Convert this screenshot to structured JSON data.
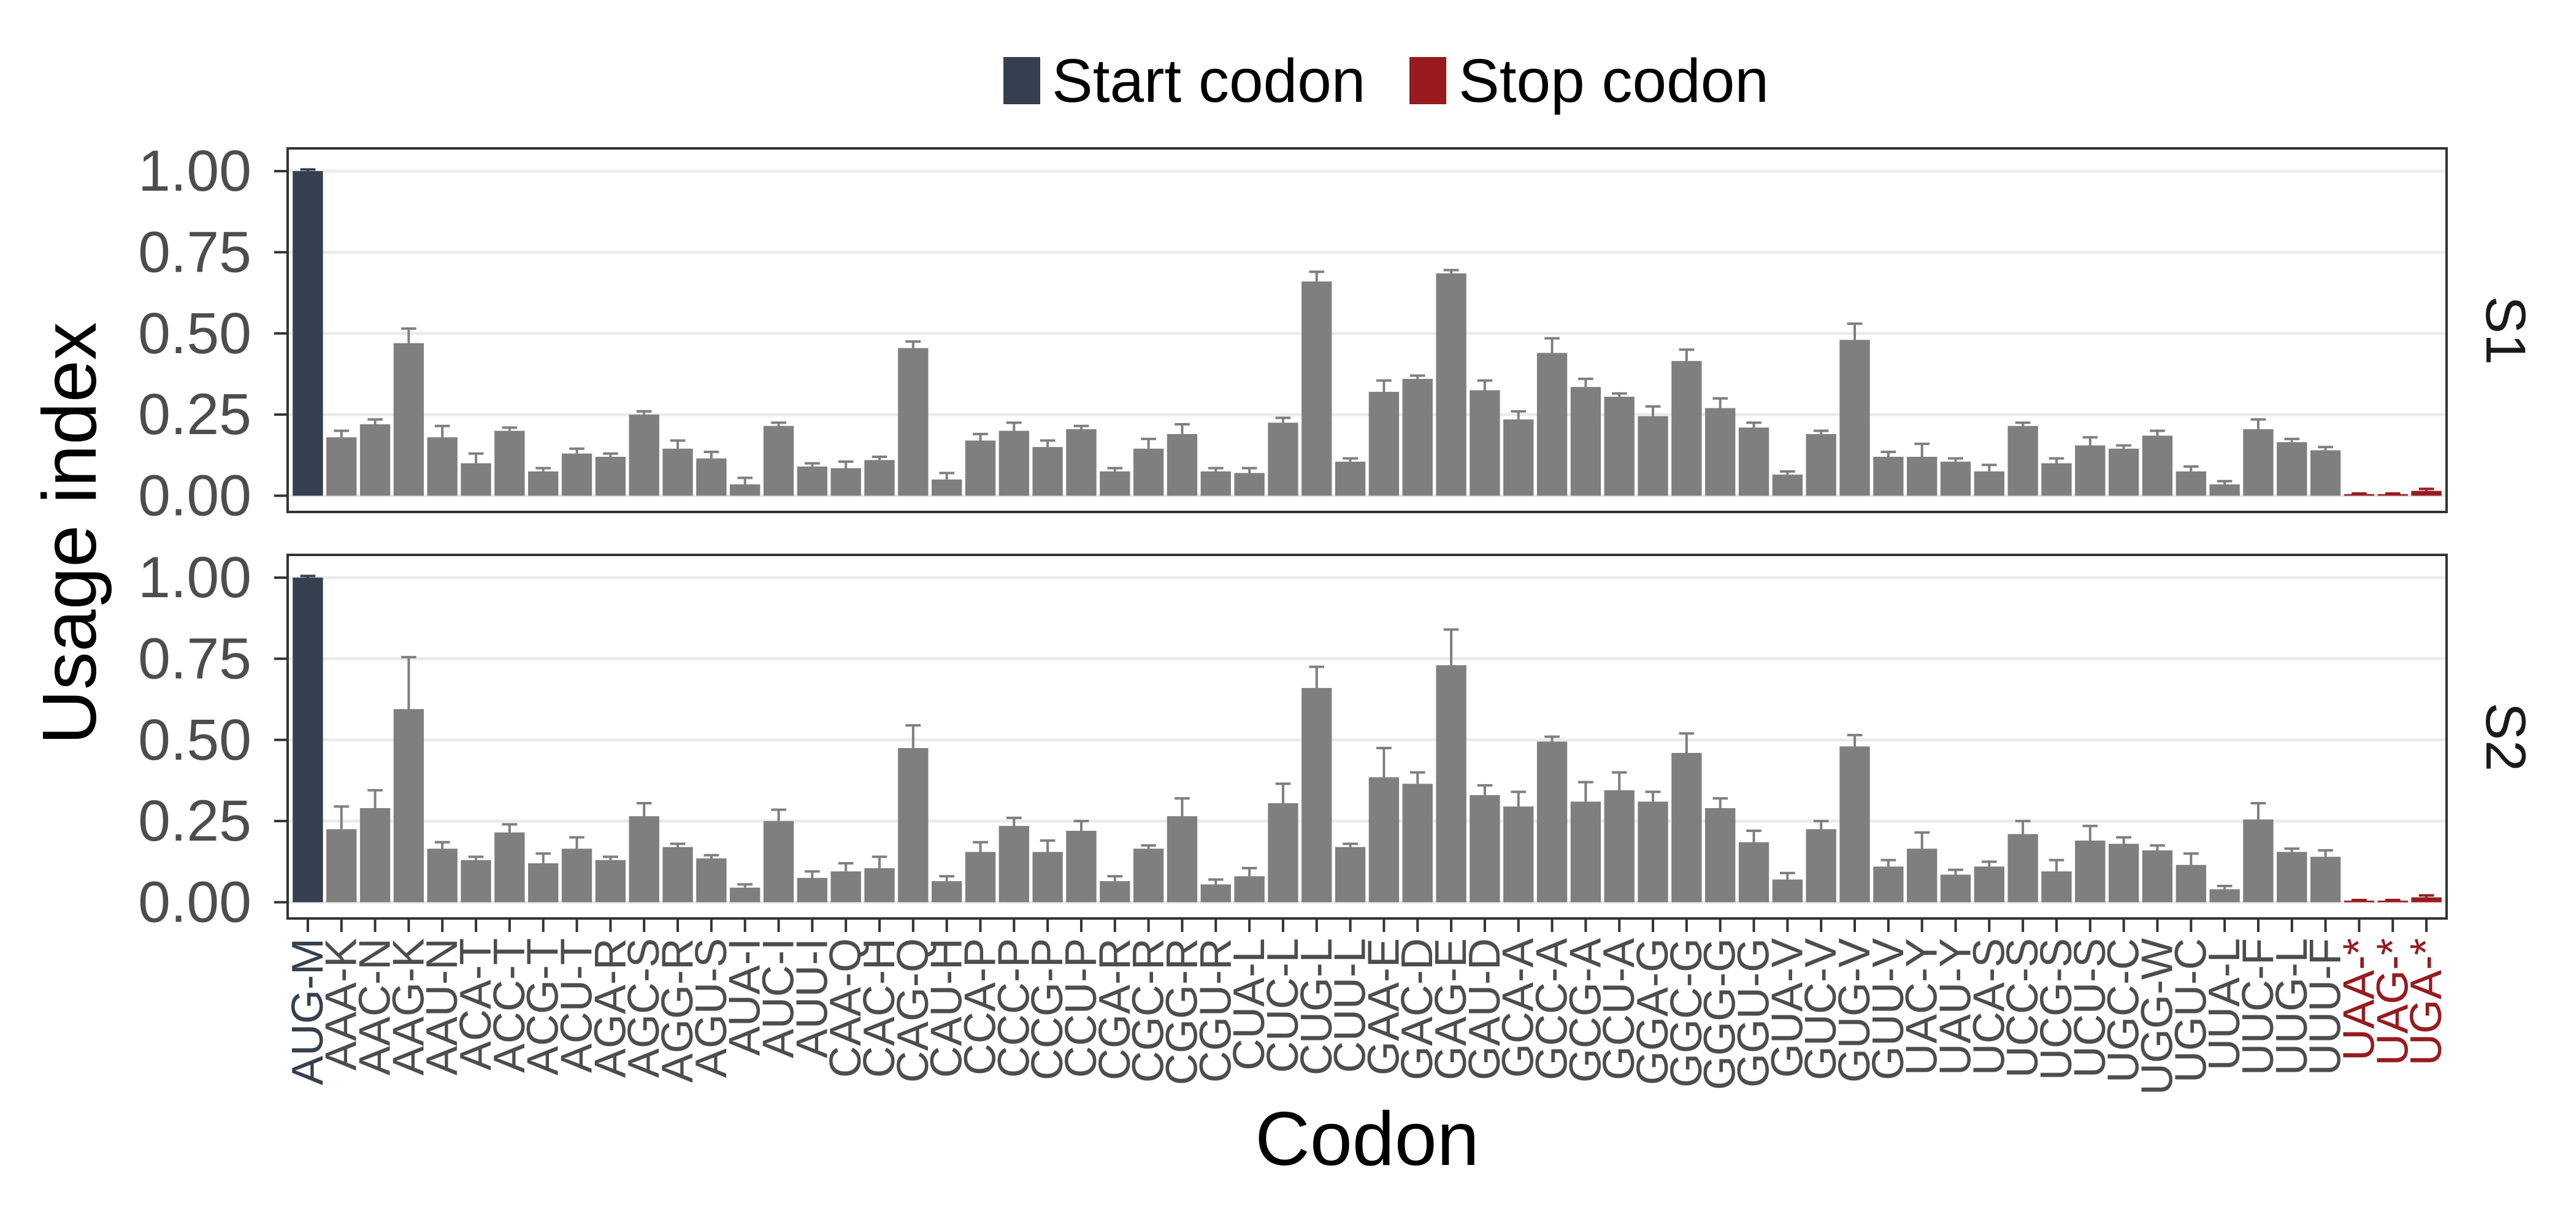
{
  "chart_data": {
    "type": "bar",
    "xlabel": "Codon",
    "ylabel": "Usage index",
    "legend_position": "top",
    "grid": {
      "major_y": true,
      "major_x": false
    },
    "legend": [
      {
        "label": "Start codon",
        "color": "#353F4F"
      },
      {
        "label": "Stop codon",
        "color": "#971B1F"
      }
    ],
    "colors": {
      "start": "#353F4F",
      "stop": "#971B1F",
      "bar": "#7F7F7F",
      "tick_label": "#4D4D4D",
      "axis": "#333333",
      "grid": "#EBEBEB",
      "title": "#000000",
      "strip": "#1A1A1A"
    },
    "start_index": [
      0
    ],
    "stop_index": [
      61,
      62,
      63
    ],
    "ylim": [
      -0.05,
      1.07
    ],
    "yticks": [
      0,
      0.25,
      0.5,
      0.75,
      1
    ],
    "ytick_labels": [
      "0.00",
      "0.25",
      "0.50",
      "0.75",
      "1.00"
    ],
    "categories": [
      "AUG-M",
      "AAA-K",
      "AAC-N",
      "AAG-K",
      "AAU-N",
      "ACA-T",
      "ACC-T",
      "ACG-T",
      "ACU-T",
      "AGA-R",
      "AGC-S",
      "AGG-R",
      "AGU-S",
      "AUA-I",
      "AUC-I",
      "AUU-I",
      "CAA-Q",
      "CAC-H",
      "CAG-Q",
      "CAU-H",
      "CCA-P",
      "CCC-P",
      "CCG-P",
      "CCU-P",
      "CGA-R",
      "CGC-R",
      "CGG-R",
      "CGU-R",
      "CUA-L",
      "CUC-L",
      "CUG-L",
      "CUU-L",
      "GAA-E",
      "GAC-D",
      "GAG-E",
      "GAU-D",
      "GCA-A",
      "GCC-A",
      "GCG-A",
      "GCU-A",
      "GGA-G",
      "GGC-G",
      "GGG-G",
      "GGU-G",
      "GUA-V",
      "GUC-V",
      "GUG-V",
      "GUU-V",
      "UAC-Y",
      "UAU-Y",
      "UCA-S",
      "UCC-S",
      "UCG-S",
      "UCU-S",
      "UGC-C",
      "UGG-W",
      "UGU-C",
      "UUA-L",
      "UUC-F",
      "UUG-L",
      "UUU-F",
      "UAA-*",
      "UAG-*",
      "UGA-*"
    ],
    "series": [
      {
        "name": "S1",
        "values": [
          1.0,
          0.18,
          0.22,
          0.47,
          0.18,
          0.1,
          0.2,
          0.075,
          0.13,
          0.12,
          0.25,
          0.145,
          0.115,
          0.035,
          0.215,
          0.09,
          0.085,
          0.11,
          0.455,
          0.05,
          0.17,
          0.2,
          0.15,
          0.205,
          0.075,
          0.145,
          0.19,
          0.075,
          0.07,
          0.225,
          0.66,
          0.105,
          0.32,
          0.36,
          0.685,
          0.325,
          0.235,
          0.44,
          0.335,
          0.305,
          0.245,
          0.415,
          0.27,
          0.21,
          0.065,
          0.19,
          0.48,
          0.12,
          0.12,
          0.105,
          0.075,
          0.215,
          0.1,
          0.155,
          0.145,
          0.185,
          0.075,
          0.035,
          0.205,
          0.165,
          0.14,
          0.005,
          0.005,
          0.015
        ],
        "errors": [
          0.005,
          0.02,
          0.015,
          0.045,
          0.035,
          0.03,
          0.01,
          0.01,
          0.015,
          0.01,
          0.01,
          0.025,
          0.02,
          0.02,
          0.01,
          0.01,
          0.02,
          0.01,
          0.02,
          0.02,
          0.02,
          0.025,
          0.02,
          0.01,
          0.01,
          0.03,
          0.03,
          0.01,
          0.015,
          0.015,
          0.03,
          0.01,
          0.035,
          0.01,
          0.01,
          0.03,
          0.025,
          0.045,
          0.025,
          0.01,
          0.03,
          0.035,
          0.03,
          0.015,
          0.01,
          0.01,
          0.05,
          0.015,
          0.04,
          0.01,
          0.02,
          0.01,
          0.015,
          0.025,
          0.01,
          0.015,
          0.015,
          0.01,
          0.03,
          0.01,
          0.01,
          0.002,
          0.002,
          0.006
        ]
      },
      {
        "name": "S2",
        "values": [
          1.0,
          0.225,
          0.29,
          0.595,
          0.165,
          0.13,
          0.215,
          0.12,
          0.165,
          0.13,
          0.265,
          0.17,
          0.135,
          0.045,
          0.25,
          0.075,
          0.095,
          0.105,
          0.475,
          0.065,
          0.155,
          0.235,
          0.155,
          0.22,
          0.065,
          0.165,
          0.265,
          0.055,
          0.08,
          0.305,
          0.66,
          0.17,
          0.385,
          0.365,
          0.73,
          0.33,
          0.295,
          0.495,
          0.31,
          0.345,
          0.31,
          0.46,
          0.29,
          0.185,
          0.07,
          0.225,
          0.48,
          0.11,
          0.165,
          0.085,
          0.11,
          0.21,
          0.095,
          0.19,
          0.18,
          0.16,
          0.115,
          0.04,
          0.255,
          0.155,
          0.14,
          0.005,
          0.005,
          0.015
        ],
        "errors": [
          0.005,
          0.07,
          0.055,
          0.16,
          0.02,
          0.01,
          0.025,
          0.03,
          0.035,
          0.01,
          0.04,
          0.01,
          0.01,
          0.01,
          0.035,
          0.02,
          0.025,
          0.035,
          0.07,
          0.015,
          0.03,
          0.025,
          0.035,
          0.03,
          0.015,
          0.01,
          0.055,
          0.015,
          0.025,
          0.06,
          0.065,
          0.01,
          0.09,
          0.035,
          0.11,
          0.03,
          0.045,
          0.015,
          0.06,
          0.055,
          0.03,
          0.06,
          0.03,
          0.035,
          0.02,
          0.025,
          0.035,
          0.02,
          0.05,
          0.015,
          0.015,
          0.04,
          0.035,
          0.045,
          0.02,
          0.015,
          0.035,
          0.01,
          0.05,
          0.01,
          0.02,
          0.002,
          0.002,
          0.006
        ]
      }
    ]
  }
}
